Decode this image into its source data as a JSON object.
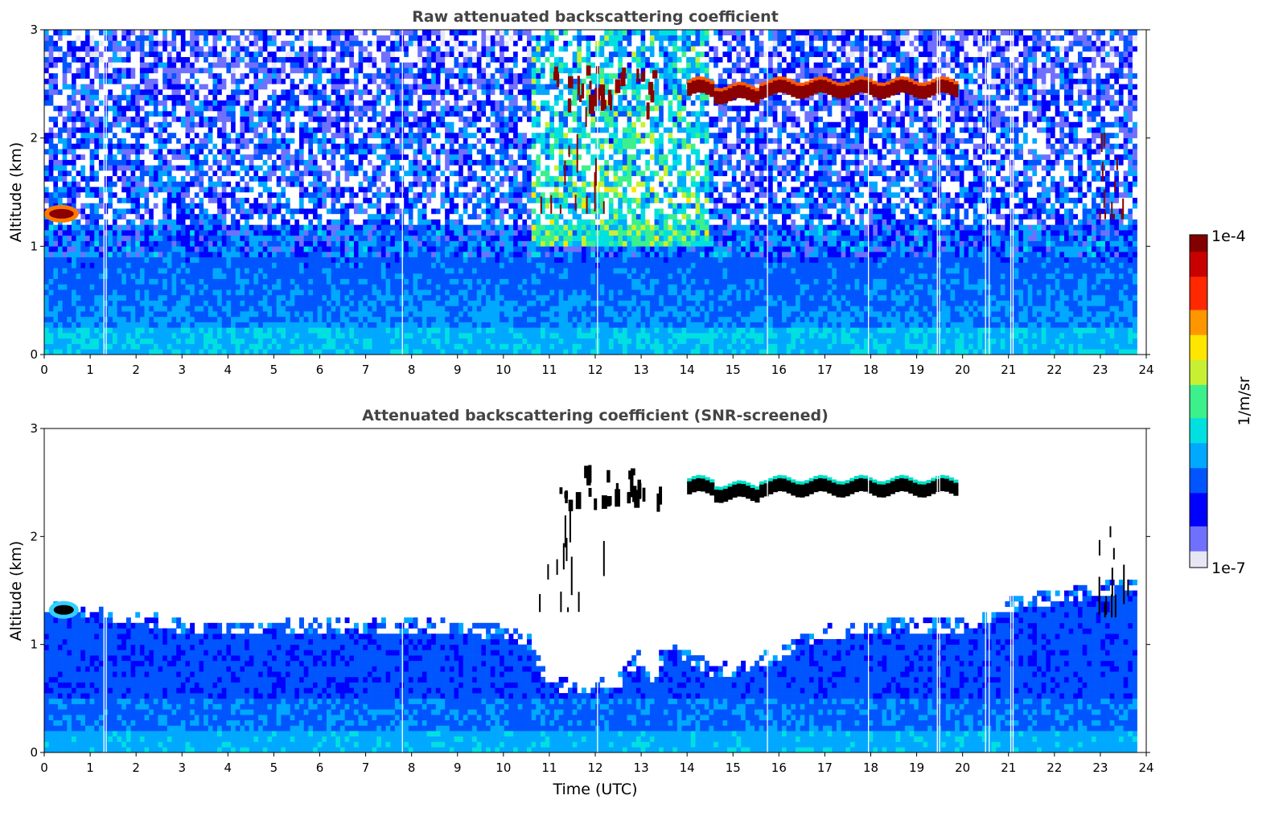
{
  "colors": {
    "colormap": [
      "#e6e6f5",
      "#7070ff",
      "#0000ff",
      "#0055ff",
      "#00a8ff",
      "#00e0e0",
      "#3cf08c",
      "#c8f032",
      "#ffe600",
      "#ff9600",
      "#ff2800",
      "#c80000",
      "#820000"
    ],
    "cloud_core": "#8b0000",
    "cloud_core_screened": "#000000",
    "title_text": "#444444"
  },
  "colorbar": {
    "label": "1/m/sr",
    "top_label": "1e-4",
    "bottom_label": "1e-7",
    "scale": "log",
    "range": [
      1e-07,
      0.0001
    ]
  },
  "xlabel": "Time (UTC)",
  "chart_data": [
    {
      "type": "heatmap",
      "title": "Raw attenuated backscattering coefficient",
      "xlabel": "",
      "ylabel": "Altitude (km)",
      "xlim": [
        0,
        24
      ],
      "ylim": [
        0,
        3
      ],
      "xticks": [
        0,
        1,
        2,
        3,
        4,
        5,
        6,
        7,
        8,
        9,
        10,
        11,
        12,
        13,
        14,
        15,
        16,
        17,
        18,
        19,
        20,
        21,
        22,
        23,
        24
      ],
      "yticks": [
        0,
        1,
        2,
        3
      ],
      "missing_profiles_utc": [
        1.3,
        1.35,
        7.8,
        12.05,
        15.75,
        17.95,
        19.45,
        19.5,
        20.5,
        20.58,
        21.05,
        21.1
      ],
      "data_end_utc": 23.8,
      "features": [
        {
          "kind": "cloud_layer",
          "time_start": 14.0,
          "time_end": 19.9,
          "altitude_km": 2.45,
          "thickness_km": 0.12
        },
        {
          "kind": "cloud_patches",
          "time_start": 11.0,
          "time_end": 13.5,
          "altitude_km": 2.4
        },
        {
          "kind": "cloud_streaks",
          "time_start": 10.7,
          "time_end": 12.3,
          "altitude_top_km": 2.3,
          "altitude_bottom_km": 1.3
        },
        {
          "kind": "low_cloud",
          "time_start": 0.0,
          "time_end": 0.75,
          "altitude_km": 1.3
        },
        {
          "kind": "cloud_streaks",
          "time_start": 22.9,
          "time_end": 23.75,
          "altitude_top_km": 2.2,
          "altitude_bottom_km": 1.25
        }
      ]
    },
    {
      "type": "heatmap",
      "title": "Attenuated backscattering coefficient (SNR-screened)",
      "xlabel": "Time (UTC)",
      "ylabel": "Altitude (km)",
      "xlim": [
        0,
        24
      ],
      "ylim": [
        0,
        3
      ],
      "xticks": [
        0,
        1,
        2,
        3,
        4,
        5,
        6,
        7,
        8,
        9,
        10,
        11,
        12,
        13,
        14,
        15,
        16,
        17,
        18,
        19,
        20,
        21,
        22,
        23,
        24
      ],
      "yticks": [
        0,
        1,
        2,
        3
      ],
      "boundary_layer_top_km": [
        [
          0,
          1.28
        ],
        [
          1,
          1.25
        ],
        [
          2,
          1.2
        ],
        [
          3,
          1.1
        ],
        [
          4,
          1.08
        ],
        [
          5,
          1.1
        ],
        [
          6,
          1.12
        ],
        [
          7,
          1.12
        ],
        [
          8,
          1.12
        ],
        [
          9,
          1.1
        ],
        [
          10,
          1.05
        ],
        [
          10.6,
          0.95
        ],
        [
          11,
          0.6
        ],
        [
          11.5,
          0.55
        ],
        [
          12,
          0.55
        ],
        [
          12.5,
          0.6
        ],
        [
          13,
          0.85
        ],
        [
          13.2,
          0.6
        ],
        [
          13.6,
          0.95
        ],
        [
          14,
          0.85
        ],
        [
          14.5,
          0.72
        ],
        [
          15,
          0.72
        ],
        [
          15.5,
          0.78
        ],
        [
          16,
          0.85
        ],
        [
          16.5,
          0.98
        ],
        [
          17,
          1.05
        ],
        [
          18,
          1.1
        ],
        [
          19,
          1.12
        ],
        [
          20,
          1.12
        ],
        [
          21,
          1.3
        ],
        [
          21.5,
          1.35
        ],
        [
          22,
          1.38
        ],
        [
          23,
          1.45
        ],
        [
          23.8,
          1.5
        ]
      ],
      "features": [
        {
          "kind": "cloud_layer",
          "time_start": 14.0,
          "time_end": 19.9,
          "altitude_km": 2.45,
          "thickness_km": 0.12
        },
        {
          "kind": "cloud_patches",
          "time_start": 11.0,
          "time_end": 13.5,
          "altitude_km": 2.4
        },
        {
          "kind": "cloud_streaks",
          "time_start": 10.7,
          "time_end": 12.3,
          "altitude_top_km": 2.3,
          "altitude_bottom_km": 1.3
        },
        {
          "kind": "low_cloud",
          "time_start": 0.1,
          "time_end": 0.75,
          "altitude_km": 1.32
        },
        {
          "kind": "cloud_streaks",
          "time_start": 22.9,
          "time_end": 23.75,
          "altitude_top_km": 2.2,
          "altitude_bottom_km": 1.25
        }
      ]
    }
  ]
}
